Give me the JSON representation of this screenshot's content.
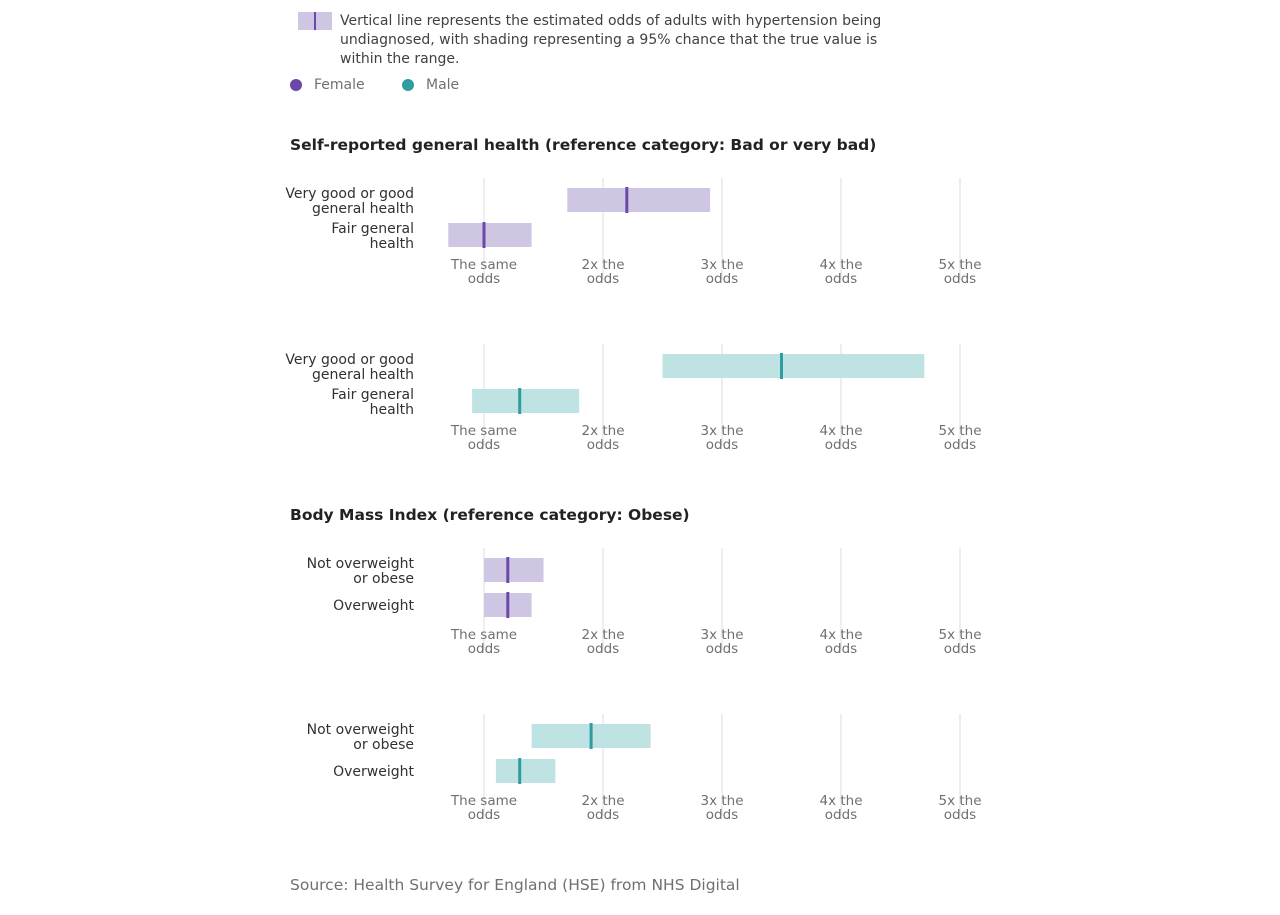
{
  "legend": {
    "description": "Vertical line represents the estimated odds of adults with hypertension being undiagnosed, with shading representing a 95% chance that the true value is within the range.",
    "series": [
      {
        "name": "Female",
        "color": "#6b48a8"
      },
      {
        "name": "Male",
        "color": "#2f9c9f"
      }
    ]
  },
  "colors": {
    "female_line": "#6b48a8",
    "female_band": "#cfc6e4",
    "male_line": "#2f9c9f",
    "male_band": "#bfe3e3",
    "grid": "#dcdcdc",
    "tick_text": "#707071"
  },
  "source": "Source: Health Survey for England (HSE) from NHS Digital",
  "chart_data": [
    {
      "type": "interval",
      "title": "Self-reported general health (reference category: Bad or very bad)",
      "series": "Female",
      "categories": [
        "Very good or good general health",
        "Fair general health"
      ],
      "estimates": [
        2.2,
        1.0
      ],
      "ranges": [
        [
          1.7,
          2.9
        ],
        [
          0.7,
          1.4
        ]
      ],
      "xlim": [
        1,
        5
      ],
      "ticks": [
        1,
        2,
        3,
        4,
        5
      ],
      "tick_labels": [
        "The same odds",
        "2x the odds",
        "3x the odds",
        "4x the odds",
        "5x the odds"
      ],
      "grid": true
    },
    {
      "type": "interval",
      "title": "",
      "series": "Male",
      "categories": [
        "Very good or good general health",
        "Fair general health"
      ],
      "estimates": [
        3.5,
        1.3
      ],
      "ranges": [
        [
          2.5,
          4.7
        ],
        [
          0.9,
          1.8
        ]
      ],
      "xlim": [
        1,
        5
      ],
      "ticks": [
        1,
        2,
        3,
        4,
        5
      ],
      "tick_labels": [
        "The same odds",
        "2x the odds",
        "3x the odds",
        "4x the odds",
        "5x the odds"
      ],
      "grid": true
    },
    {
      "type": "interval",
      "title": "Body Mass Index (reference category: Obese)",
      "series": "Female",
      "categories": [
        "Not overweight or obese",
        "Overweight"
      ],
      "estimates": [
        1.2,
        1.2
      ],
      "ranges": [
        [
          1.0,
          1.5
        ],
        [
          1.0,
          1.4
        ]
      ],
      "xlim": [
        1,
        5
      ],
      "ticks": [
        1,
        2,
        3,
        4,
        5
      ],
      "tick_labels": [
        "The same odds",
        "2x the odds",
        "3x the odds",
        "4x the odds",
        "5x the odds"
      ],
      "grid": true
    },
    {
      "type": "interval",
      "title": "",
      "series": "Male",
      "categories": [
        "Not overweight or obese",
        "Overweight"
      ],
      "estimates": [
        1.9,
        1.3
      ],
      "ranges": [
        [
          1.4,
          2.4
        ],
        [
          1.1,
          1.6
        ]
      ],
      "xlim": [
        1,
        5
      ],
      "ticks": [
        1,
        2,
        3,
        4,
        5
      ],
      "tick_labels": [
        "The same odds",
        "2x the odds",
        "3x the odds",
        "4x the odds",
        "5x the odds"
      ],
      "grid": true
    }
  ]
}
